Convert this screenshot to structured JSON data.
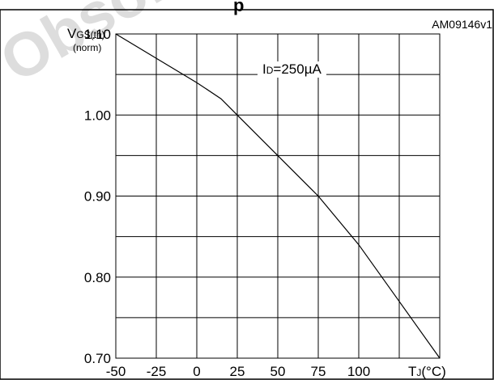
{
  "page": {
    "watermark": "Obsole",
    "title_fragment": "p",
    "figure_code": "AM09146v1"
  },
  "labels": {
    "y_axis_main": "V",
    "y_axis_sub": "GS(th)",
    "y_axis_unit": "(norm)",
    "x_axis_main": "T",
    "x_axis_sub": "J",
    "x_axis_unit": "(°C)",
    "curve_main": "I",
    "curve_sub": "D",
    "curve_value": "=250µA"
  },
  "chart_data": {
    "type": "line",
    "title": "",
    "xlabel": "TJ(°C)",
    "ylabel": "VGS(th) (norm)",
    "xlim": [
      -50,
      150
    ],
    "ylim": [
      0.7,
      1.1
    ],
    "x_ticks": [
      -50,
      -25,
      0,
      25,
      50,
      75,
      100
    ],
    "y_ticks": [
      0.7,
      0.8,
      0.9,
      1.0,
      1.1
    ],
    "x_tick_labels": [
      "-50",
      "-25",
      "0",
      "25",
      "50",
      "75",
      "100"
    ],
    "y_tick_labels": [
      "0.70",
      "0.80",
      "0.90",
      "1.00",
      "1.10"
    ],
    "grid": true,
    "series": [
      {
        "name": "ID=250µA",
        "x": [
          -50,
          -25,
          0,
          15,
          25,
          50,
          75,
          100,
          125,
          150
        ],
        "y": [
          1.1,
          1.07,
          1.04,
          1.02,
          1.0,
          0.95,
          0.9,
          0.84,
          0.77,
          0.7
        ]
      }
    ],
    "line_color": "#000000",
    "grid_color": "#000000"
  }
}
